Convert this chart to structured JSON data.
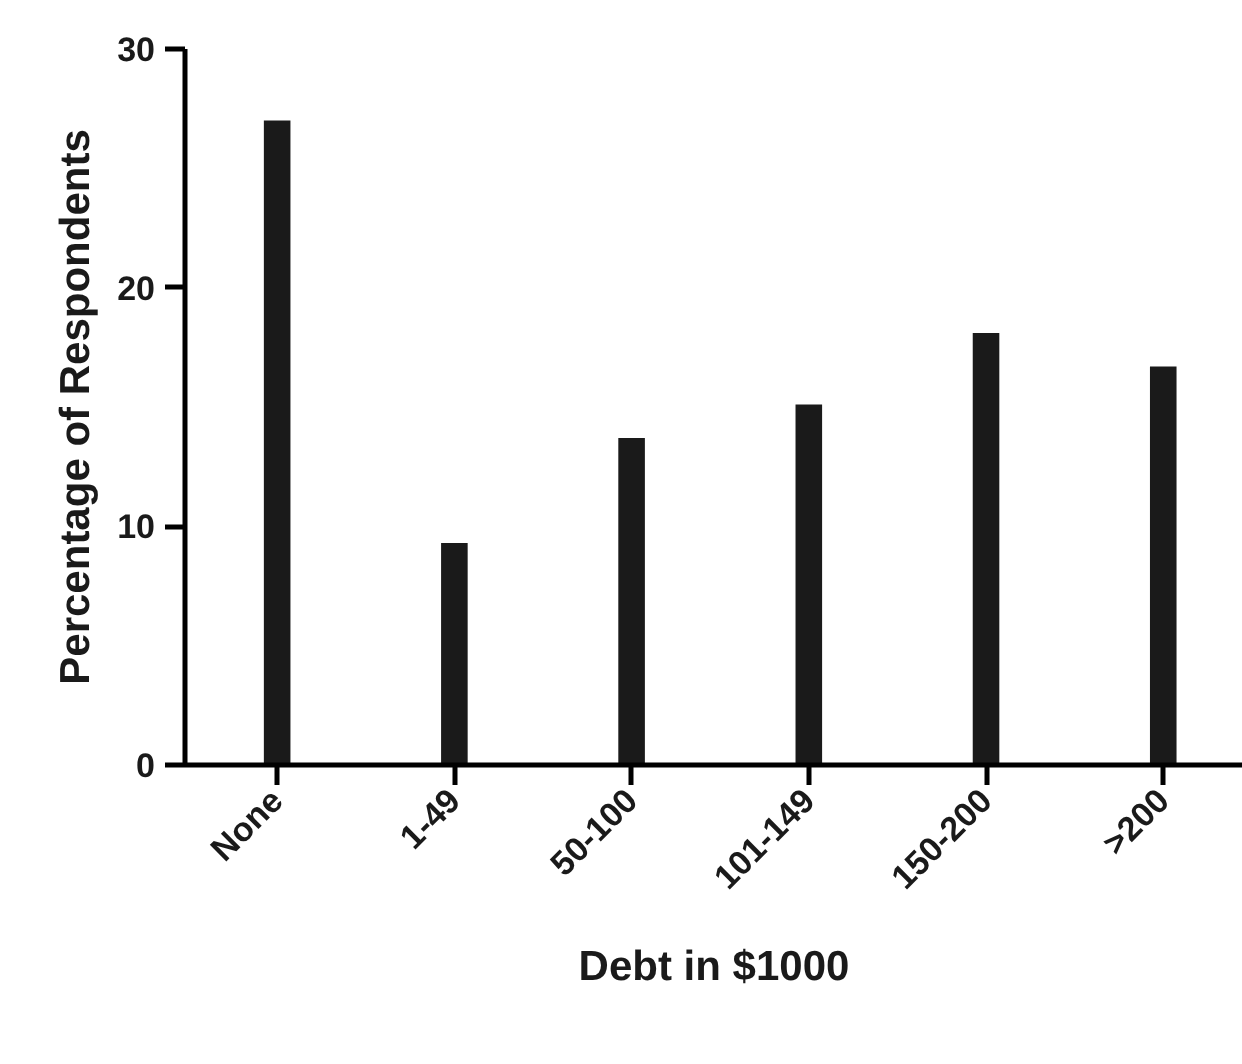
{
  "chart_data": {
    "type": "bar",
    "xlabel": "Debt in $1000",
    "ylabel": "Percentage of Respondents",
    "categories": [
      "None",
      "1-49",
      "50-100",
      "101-149",
      "150-200",
      ">200"
    ],
    "values": [
      27.0,
      9.3,
      13.7,
      15.1,
      18.1,
      16.7
    ],
    "color": "#1a1a1a",
    "ylim": [
      0,
      30
    ],
    "yticks": [
      0,
      10,
      20,
      30
    ],
    "grid": false
  }
}
